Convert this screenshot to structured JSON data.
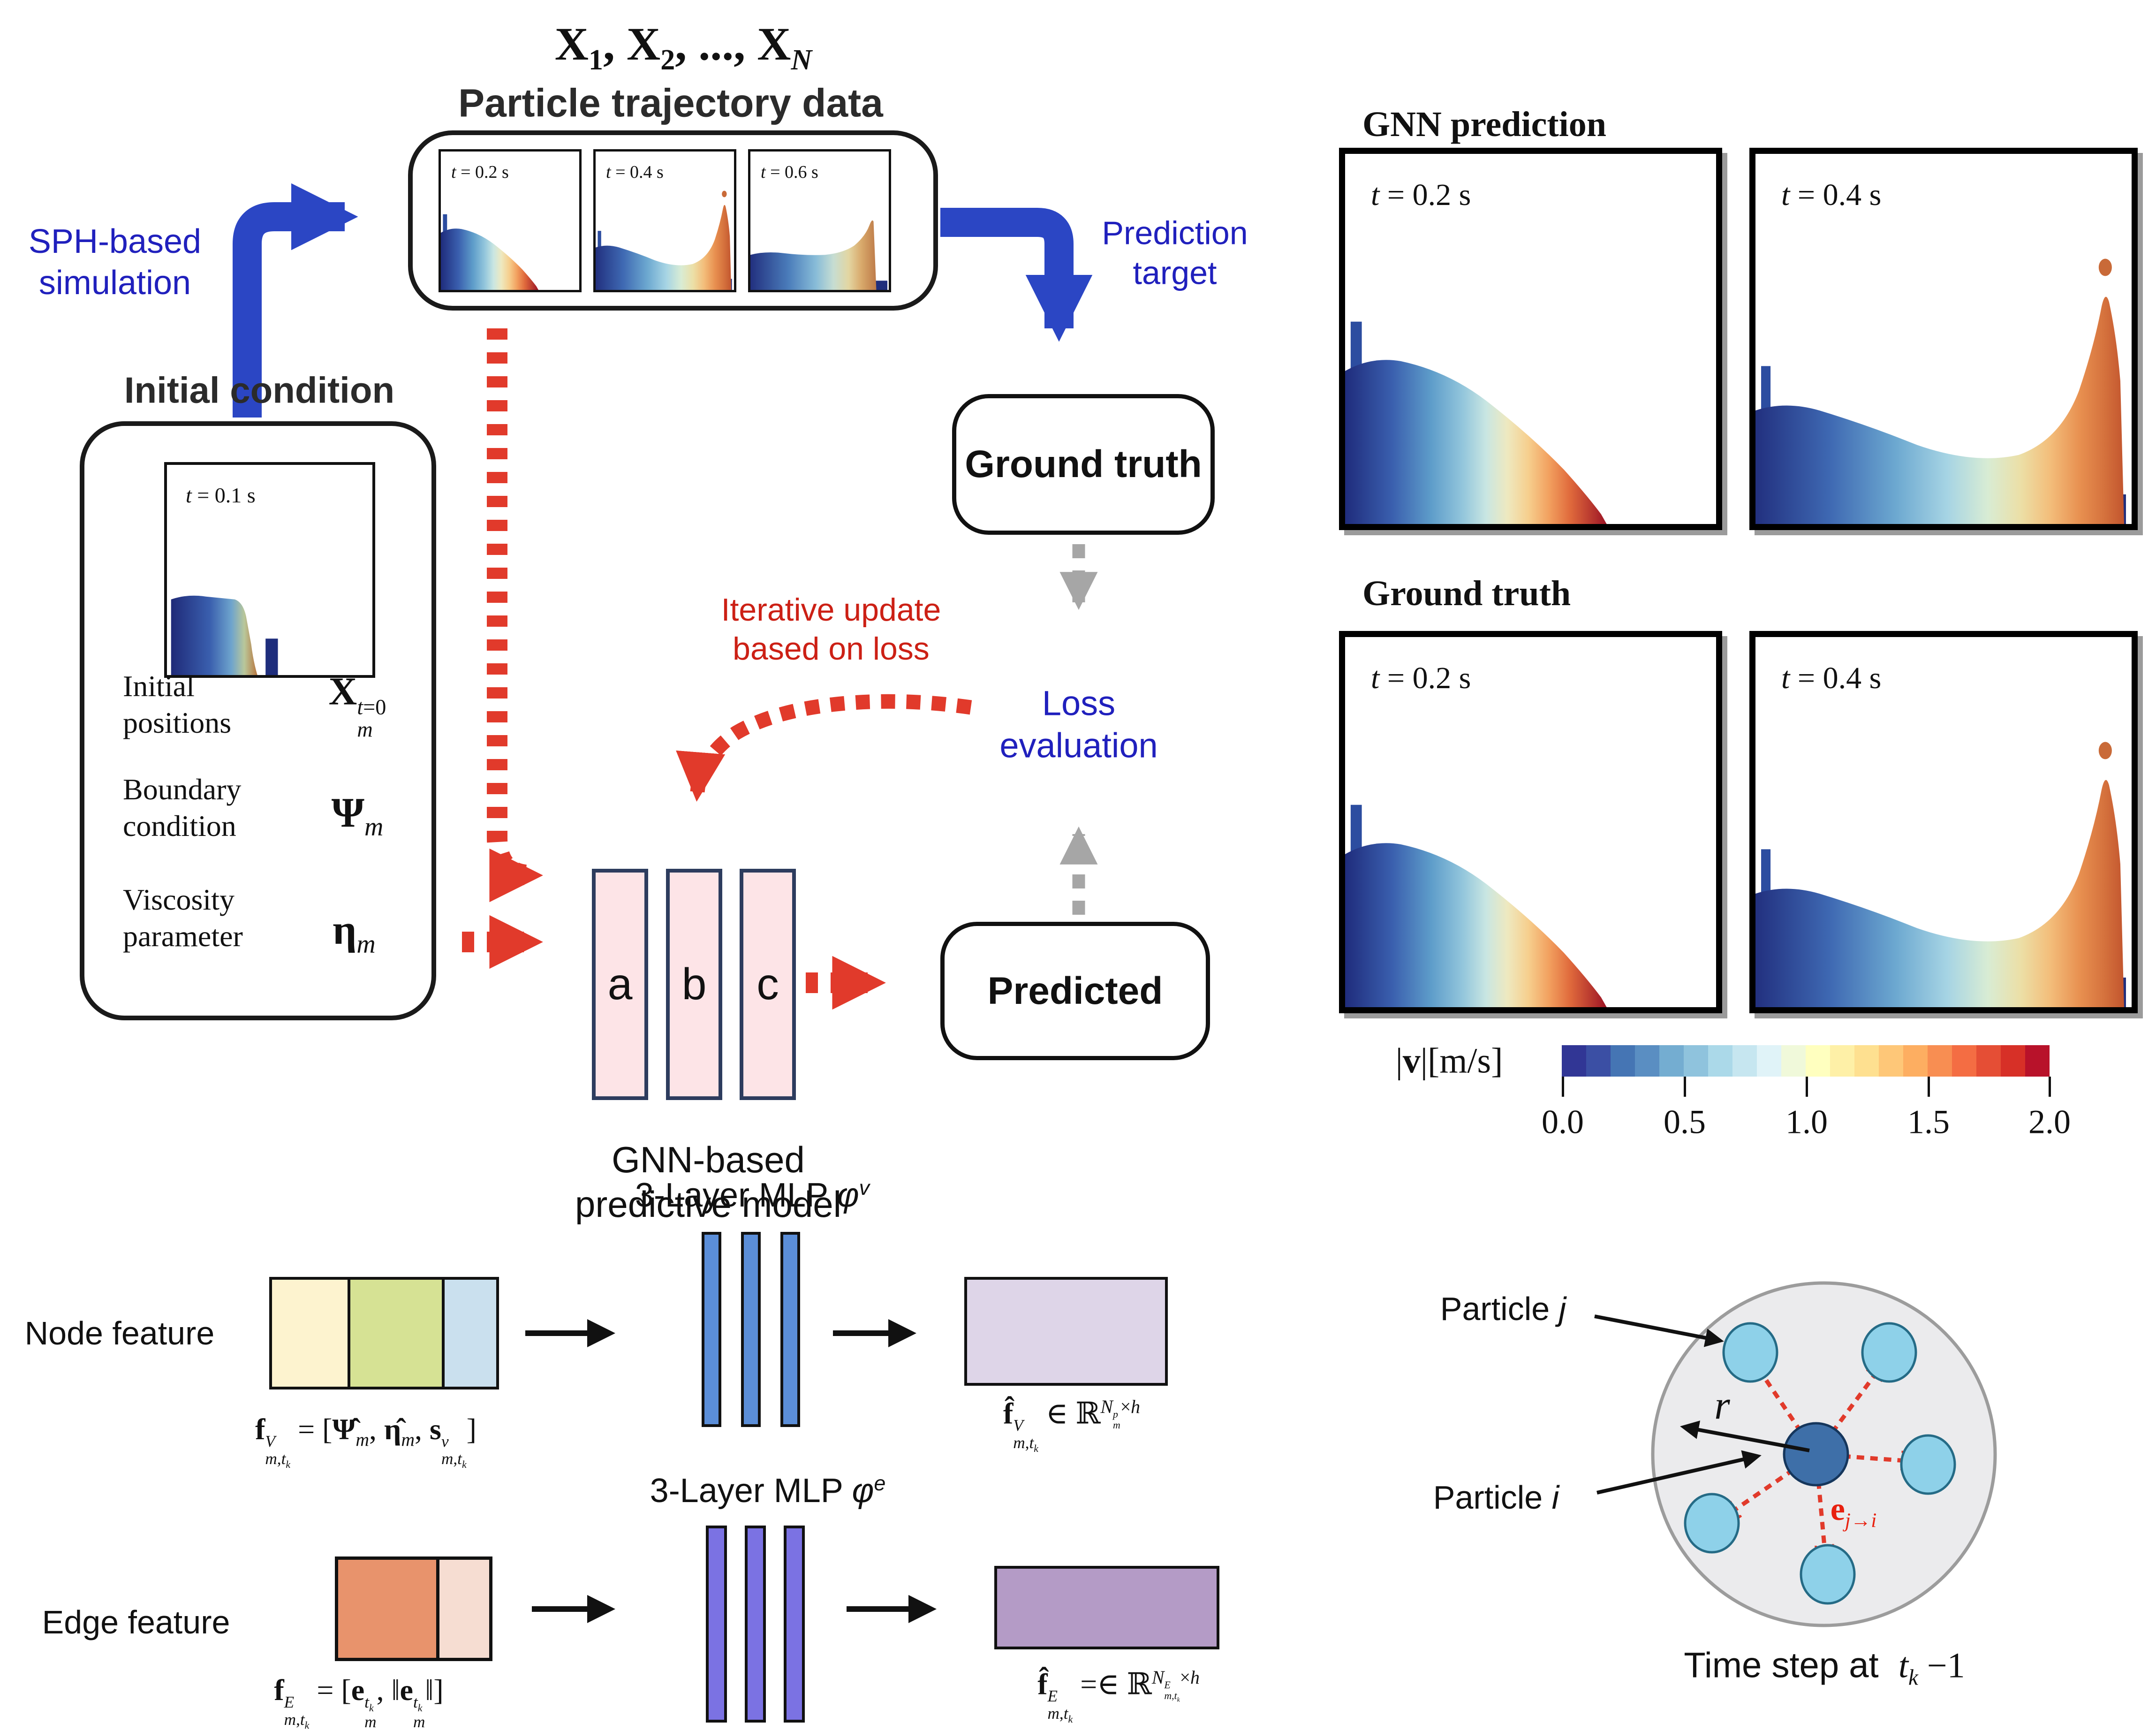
{
  "accents": {
    "blue_text": "#2020bd",
    "blue_arrow": "#2b46c4",
    "red_arrow": "#e13a2b",
    "red_text": "#cc2015",
    "gray_arrow": "#a6a6a6",
    "gnn_block_fill": "#fde4e7",
    "gnn_block_border": "#2d3c5e"
  },
  "flow": {
    "traj_formula_html": "<b>X</b><sub>1</sub>, <b>X</b><sub>2</sub>, ..., <b>X</b><sub><i>N</i></sub>",
    "traj_title": "Particle trajectory data",
    "traj_frames": [
      {
        "time_html": "<i>t</i> = 0.2 s"
      },
      {
        "time_html": "<i>t</i> = 0.4 s"
      },
      {
        "time_html": "<i>t</i> = 0.6 s"
      }
    ],
    "sph_line1": "SPH-based",
    "sph_line2": "simulation",
    "initial_condition_title": "Initial condition",
    "ic_frame_time_html": "<i>t</i> = 0.1 s",
    "ic_items": [
      {
        "label_line1": "Initial",
        "label_line2": "positions",
        "symbol_html": "<b>X</b><span class=\"ss\"><span><i>t</i>=0</span><span><i>m</i></span></span>"
      },
      {
        "label_line1": "Boundary",
        "label_line2": "condition",
        "symbol_html": "<b>&Psi;</b><sub><i>m</i></sub>"
      },
      {
        "label_line1": "Viscosity",
        "label_line2": "parameter",
        "symbol_html": "<b>&eta;</b><sub><i>m</i></sub>"
      }
    ],
    "prediction_target_line1": "Prediction",
    "prediction_target_line2": "target",
    "ground_truth_label": "Ground truth",
    "iterative_update_line1": "Iterative update",
    "iterative_update_line2": "based on loss",
    "loss_line1": "Loss",
    "loss_line2": "evaluation",
    "predicted_label": "Predicted",
    "gnn_blocks": [
      "a",
      "b",
      "c"
    ],
    "gnn_caption_line1": "GNN-based",
    "gnn_caption_line2": "predictive model"
  },
  "results": {
    "gnn_pred_title": "GNN prediction",
    "ground_truth_title": "Ground truth",
    "panels": [
      {
        "row": "gnn-prediction",
        "time_html": "<i>t</i> = 0.2 s"
      },
      {
        "row": "gnn-prediction",
        "time_html": "<i>t</i> = 0.4 s"
      },
      {
        "row": "ground-truth",
        "time_html": "<i>t</i> = 0.2 s"
      },
      {
        "row": "ground-truth",
        "time_html": "<i>t</i> = 0.4 s"
      }
    ],
    "colorbar": {
      "label_html": "|<b>v</b>|[m/s]",
      "ticks": [
        "0.0",
        "0.5",
        "1.0",
        "1.5",
        "2.0"
      ],
      "unit_range": [
        0.0,
        2.0
      ],
      "colors": [
        "#313695",
        "#3b4fa4",
        "#4575b4",
        "#5a8ec2",
        "#74add1",
        "#8fc3dd",
        "#abd9e9",
        "#c6e6f0",
        "#e0f3f8",
        "#f0f9da",
        "#ffffbf",
        "#fef0a7",
        "#fee090",
        "#fec778",
        "#fdae61",
        "#f88e52",
        "#f46d43",
        "#e54e35",
        "#d73027",
        "#b8122a"
      ]
    }
  },
  "mlp": {
    "node_title_html": "3-Layer MLP <i>&phi;</i><sup><i>v</i></sup>",
    "edge_title_html": "3-Layer MLP <i>&phi;</i><sup><i>e</i></sup>",
    "node_feature_label": "Node feature",
    "edge_feature_label": "Edge feature",
    "node_input_formula_html": "<b>f</b><span class=\"ss\"><span><i>V</i></span><span><i>m</i>,<i>t</i><sub><i>k</i></sub></span></span> = [<b>&Psi;&#770;</b><sub><i>m</i></sub>, <b>&eta;&#770;</b><sub><i>m</i></sub>, <b>s</b><span class=\"ss\"><span><i>v</i></span><span><i>m</i>,<i>t</i><sub><i>k</i></sub></span></span>]",
    "node_output_formula_html": "<b>f&#770;</b><span class=\"ss\"><span><i>V</i></span><span><i>m</i>,<i>t</i><sub><i>k</i></sub></span></span> &isin; &#8477;<sup><i>N</i><span class=\"ss\"><span><i>p</i></span><span><i>m</i></span></span>&times;<i>h</i></sup>",
    "edge_input_formula_html": "<b>f</b><span class=\"ss\"><span><i>E</i></span><span><i>m</i>,<i>t</i><sub><i>k</i></sub></span></span> = [<b>e</b><span class=\"ss\"><span><i>t</i><sub><i>k</i></sub></span><span><i>m</i></span></span>, &#8214;<b>e</b><span class=\"ss\"><span><i>t</i><sub><i>k</i></sub></span><span><i>m</i></span></span>&#8214;]",
    "edge_output_formula_html": "<b>f&#770;</b><span class=\"ss\"><span><i>E</i></span><span><i>m</i>,<i>t</i><sub><i>k</i></sub></span></span> =&isin; &#8477;<sup><i>N</i><span class=\"ss\"><span><i>E</i></span><span><i>m</i>,<i>t</i><sub><i>k</i></sub></span></span>&times;<i>h</i></sup>"
  },
  "neighborhood": {
    "particle_j_label_html": "Particle <i>j</i>",
    "particle_i_label_html": "Particle <i>i</i>",
    "radius_label_html": "<i>r</i>",
    "edge_vector_label_html": "<b>e</b><sub><i>j</i>&rarr;<i>i</i></sub>",
    "caption_html": "Time step at&nbsp;&nbsp;<span class=\"serif\"><i>t</i><sub><i>k</i></sub> &minus;1</span>"
  }
}
